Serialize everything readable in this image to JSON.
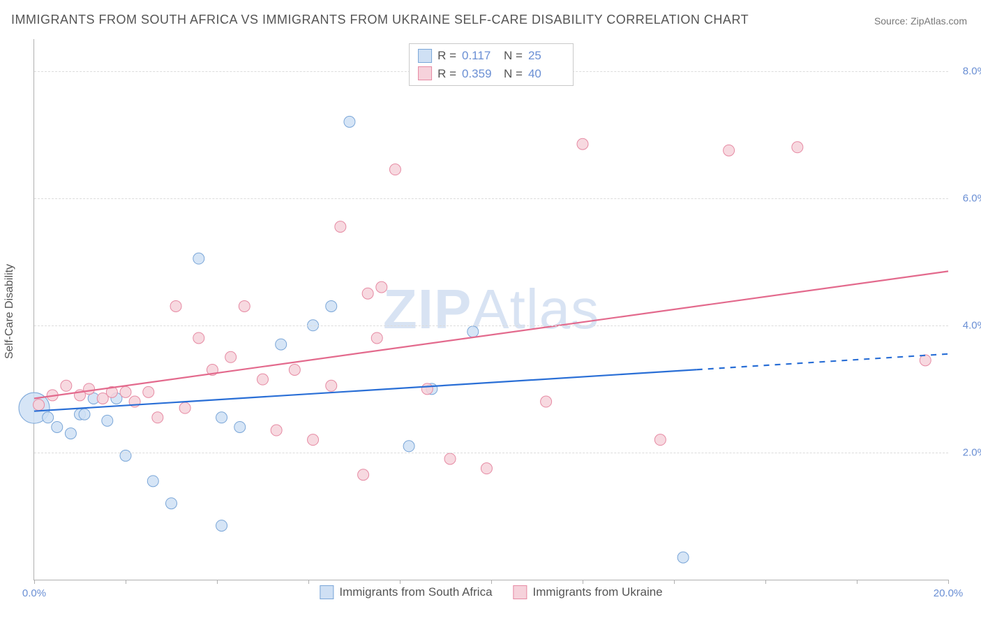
{
  "title": "IMMIGRANTS FROM SOUTH AFRICA VS IMMIGRANTS FROM UKRAINE SELF-CARE DISABILITY CORRELATION CHART",
  "source": "Source: ZipAtlas.com",
  "y_axis_title": "Self-Care Disability",
  "watermark_bold": "ZIP",
  "watermark_rest": "Atlas",
  "series": [
    {
      "key": "sa",
      "name": "Immigrants from South Africa",
      "fill": "#cfe0f4",
      "stroke": "#7aa6d8",
      "line_color": "#2a6fd6",
      "r_value": "0.117",
      "n_value": "25",
      "trend": {
        "x1": 0.0,
        "y1": 2.65,
        "x2": 20.0,
        "y2": 3.55,
        "dash_from_x": 14.5
      },
      "points": [
        [
          0.0,
          2.7,
          22
        ],
        [
          0.3,
          2.55,
          8
        ],
        [
          0.5,
          2.4,
          8
        ],
        [
          0.8,
          2.3,
          8
        ],
        [
          1.0,
          2.6,
          8
        ],
        [
          1.1,
          2.6,
          8
        ],
        [
          1.3,
          2.85,
          8
        ],
        [
          1.6,
          2.5,
          8
        ],
        [
          1.8,
          2.85,
          8
        ],
        [
          2.0,
          1.95,
          8
        ],
        [
          2.6,
          1.55,
          8
        ],
        [
          3.0,
          1.2,
          8
        ],
        [
          3.6,
          5.05,
          8
        ],
        [
          4.1,
          2.55,
          8
        ],
        [
          4.1,
          0.85,
          8
        ],
        [
          4.5,
          2.4,
          8
        ],
        [
          5.4,
          3.7,
          8
        ],
        [
          6.1,
          4.0,
          8
        ],
        [
          6.5,
          4.3,
          8
        ],
        [
          6.9,
          7.2,
          8
        ],
        [
          8.2,
          2.1,
          8
        ],
        [
          8.7,
          3.0,
          8
        ],
        [
          9.6,
          3.9,
          8
        ],
        [
          14.2,
          0.35,
          8
        ]
      ]
    },
    {
      "key": "ua",
      "name": "Immigrants from Ukraine",
      "fill": "#f6d2db",
      "stroke": "#e68aa3",
      "line_color": "#e36a8d",
      "r_value": "0.359",
      "n_value": "40",
      "trend": {
        "x1": 0.0,
        "y1": 2.85,
        "x2": 20.0,
        "y2": 4.85,
        "dash_from_x": null
      },
      "points": [
        [
          0.1,
          2.75,
          8
        ],
        [
          0.4,
          2.9,
          8
        ],
        [
          0.7,
          3.05,
          8
        ],
        [
          1.0,
          2.9,
          8
        ],
        [
          1.2,
          3.0,
          8
        ],
        [
          1.5,
          2.85,
          8
        ],
        [
          1.7,
          2.95,
          8
        ],
        [
          2.0,
          2.95,
          8
        ],
        [
          2.2,
          2.8,
          8
        ],
        [
          2.5,
          2.95,
          8
        ],
        [
          2.7,
          2.55,
          8
        ],
        [
          3.1,
          4.3,
          8
        ],
        [
          3.3,
          2.7,
          8
        ],
        [
          3.6,
          3.8,
          8
        ],
        [
          3.9,
          3.3,
          8
        ],
        [
          4.3,
          3.5,
          8
        ],
        [
          4.6,
          4.3,
          8
        ],
        [
          5.0,
          3.15,
          8
        ],
        [
          5.3,
          2.35,
          8
        ],
        [
          5.7,
          3.3,
          8
        ],
        [
          6.1,
          2.2,
          8
        ],
        [
          6.5,
          3.05,
          8
        ],
        [
          6.7,
          5.55,
          8
        ],
        [
          7.2,
          1.65,
          8
        ],
        [
          7.3,
          4.5,
          8
        ],
        [
          7.5,
          3.8,
          8
        ],
        [
          7.6,
          4.6,
          8
        ],
        [
          7.9,
          6.45,
          8
        ],
        [
          8.6,
          3.0,
          8
        ],
        [
          9.1,
          1.9,
          8
        ],
        [
          9.9,
          1.75,
          8
        ],
        [
          11.2,
          2.8,
          8
        ],
        [
          12.0,
          6.85,
          8
        ],
        [
          13.7,
          2.2,
          8
        ],
        [
          15.2,
          6.75,
          8
        ],
        [
          16.7,
          6.8,
          8
        ],
        [
          19.5,
          3.45,
          8
        ]
      ]
    }
  ],
  "chart": {
    "xlim": [
      0,
      20
    ],
    "ylim": [
      0,
      8.5
    ],
    "xticks": [
      0,
      2,
      4,
      6,
      8,
      10,
      12,
      14,
      16,
      18,
      20
    ],
    "xticklabels": {
      "0": "0.0%",
      "20": "20.0%"
    },
    "yticks": [
      2,
      4,
      6,
      8
    ],
    "yticklabels": {
      "2": "2.0%",
      "4": "4.0%",
      "6": "6.0%",
      "8": "8.0%"
    },
    "background_color": "#ffffff",
    "grid_color": "#dcdcdc",
    "axis_color": "#b0b0b0",
    "label_color": "#6a8fd4",
    "title_color": "#555555",
    "title_fontsize": 18,
    "label_fontsize": 15,
    "marker_default_radius": 8,
    "marker_opacity": 0.85,
    "trend_line_width": 2.2
  }
}
